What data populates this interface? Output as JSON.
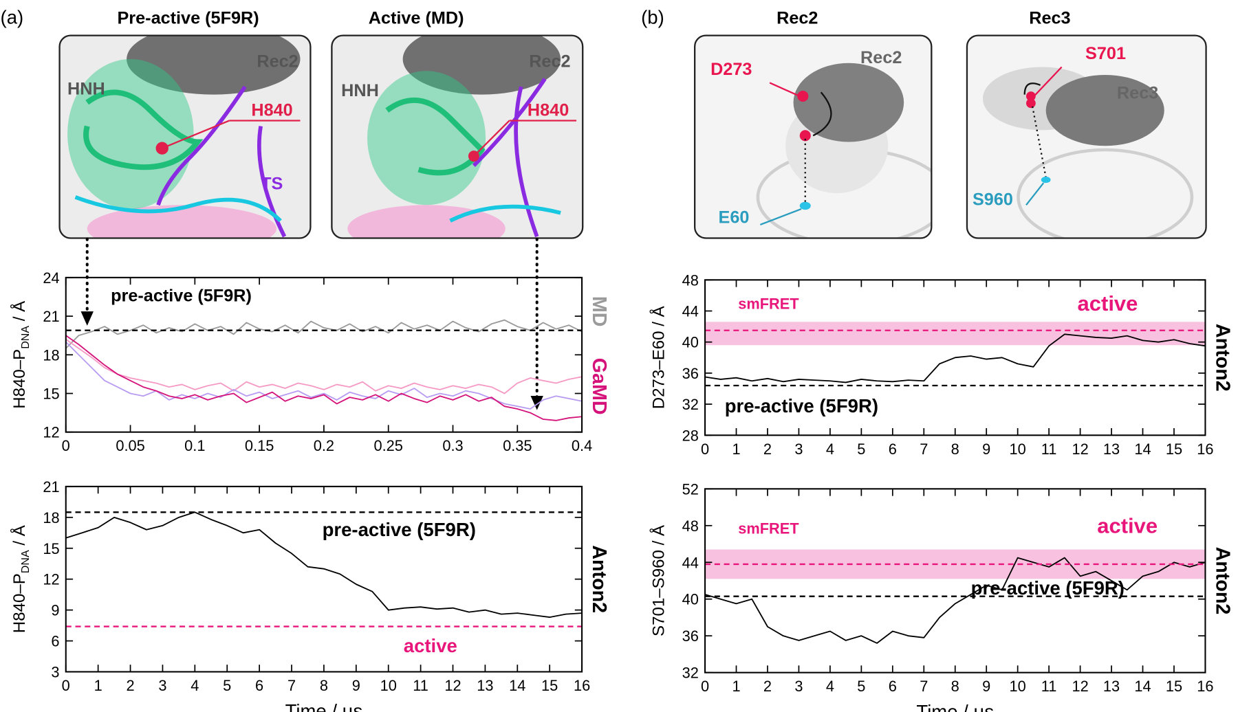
{
  "panel_labels": [
    "(a)",
    "(b)"
  ],
  "structures": [
    {
      "title": "Pre-active (5F9R)",
      "labels": [
        "HNH",
        "Rec2",
        "H840",
        "TS"
      ]
    },
    {
      "title": "Active (MD)",
      "labels": [
        "HNH",
        "Rec2",
        "H840"
      ]
    },
    {
      "title": "Rec2",
      "labels": [
        "D273",
        "Rec2",
        "E60"
      ]
    },
    {
      "title": "Rec3",
      "labels": [
        "S701",
        "Rec3",
        "S960"
      ]
    }
  ],
  "chart_data": [
    {
      "type": "line",
      "ylabel": {
        "text": "H840–P",
        "sub": "DNA",
        "tail": " / Å"
      },
      "x": [
        0,
        0.01,
        0.02,
        0.03,
        0.04,
        0.05,
        0.06,
        0.07,
        0.08,
        0.09,
        0.1,
        0.11,
        0.12,
        0.13,
        0.14,
        0.15,
        0.16,
        0.17,
        0.18,
        0.19,
        0.2,
        0.21,
        0.22,
        0.23,
        0.24,
        0.25,
        0.26,
        0.27,
        0.28,
        0.29,
        0.3,
        0.31,
        0.32,
        0.33,
        0.34,
        0.35,
        0.36,
        0.37,
        0.38,
        0.39,
        0.4
      ],
      "xlim": [
        0,
        0.4
      ],
      "xticks": [
        0,
        0.05,
        0.1,
        0.15,
        0.2,
        0.25,
        0.3,
        0.35,
        0.4
      ],
      "ylim": [
        12,
        24
      ],
      "yticks": [
        12,
        15,
        18,
        21,
        24
      ],
      "series": [
        {
          "name": "MD",
          "color": "#9a9a9a",
          "values": [
            18.5,
            19.5,
            19.8,
            20.2,
            19.6,
            19.9,
            20.3,
            19.7,
            20.1,
            19.8,
            20.4,
            19.9,
            20.2,
            19.6,
            20.5,
            20.0,
            19.8,
            20.3,
            19.7,
            20.6,
            20.1,
            19.9,
            20.4,
            19.8,
            20.2,
            19.7,
            20.5,
            20.0,
            20.3,
            19.9,
            20.6,
            20.1,
            19.8,
            20.4,
            20.7,
            20.2,
            19.9,
            20.5,
            20.0,
            20.3,
            19.8
          ]
        },
        {
          "color": "#f59ac4",
          "values": [
            19.2,
            18.5,
            17.8,
            17.0,
            16.5,
            16.2,
            16.0,
            15.8,
            15.5,
            15.7,
            15.3,
            15.6,
            15.8,
            15.2,
            15.9,
            15.5,
            15.7,
            15.4,
            15.8,
            15.6,
            15.3,
            15.7,
            15.5,
            15.9,
            15.2,
            15.6,
            15.4,
            15.8,
            15.5,
            15.3,
            15.6,
            15.4,
            15.7,
            15.5,
            15.0,
            15.8,
            16.2,
            16.0,
            15.8,
            16.1,
            16.3
          ]
        },
        {
          "color": "#b89cf2",
          "values": [
            19.0,
            18.0,
            17.0,
            16.0,
            15.5,
            15.0,
            14.8,
            15.2,
            14.5,
            14.9,
            14.6,
            15.0,
            14.7,
            15.3,
            14.8,
            15.1,
            14.6,
            14.9,
            15.2,
            14.7,
            15.0,
            14.5,
            15.1,
            14.8,
            14.6,
            15.2,
            14.9,
            15.4,
            14.7,
            15.0,
            14.8,
            15.2,
            15.0,
            14.6,
            14.2,
            14.0,
            13.8,
            14.5,
            14.8,
            14.6,
            14.4
          ]
        },
        {
          "name": "GaMD",
          "color": "#d4127a",
          "values": [
            19.5,
            18.8,
            18.0,
            17.2,
            16.5,
            16.0,
            15.5,
            15.2,
            14.8,
            14.6,
            14.9,
            14.5,
            14.8,
            15.0,
            14.3,
            14.7,
            15.1,
            14.4,
            14.8,
            14.6,
            14.9,
            14.2,
            14.7,
            14.5,
            14.9,
            14.4,
            15.0,
            14.6,
            14.3,
            14.8,
            14.5,
            14.9,
            14.4,
            14.7,
            14.0,
            13.8,
            13.5,
            13.0,
            12.9,
            13.1,
            13.2
          ]
        }
      ],
      "reference_lines": [
        {
          "value": 19.9,
          "color": "#000000"
        }
      ],
      "annotations": [
        "pre-active (5F9R)"
      ]
    },
    {
      "type": "line",
      "ylabel": {
        "text": "H840–P",
        "sub": "DNA",
        "tail": " / Å"
      },
      "xlabel": "Time / µs",
      "x": [
        0,
        0.5,
        1,
        1.5,
        2,
        2.5,
        3,
        3.5,
        4,
        4.5,
        5,
        5.5,
        6,
        6.5,
        7,
        7.5,
        8,
        8.5,
        9,
        9.5,
        10,
        10.5,
        11,
        11.5,
        12,
        12.5,
        13,
        13.5,
        14,
        14.5,
        15,
        15.5,
        16
      ],
      "xlim": [
        0,
        16
      ],
      "xticks": [
        0,
        1,
        2,
        3,
        4,
        5,
        6,
        7,
        8,
        9,
        10,
        11,
        12,
        13,
        14,
        15,
        16
      ],
      "ylim": [
        3,
        21
      ],
      "yticks": [
        3,
        6,
        9,
        12,
        15,
        18,
        21
      ],
      "series": [
        {
          "name": "Anton2",
          "color": "#000000",
          "values": [
            16,
            16.5,
            17,
            18,
            17.5,
            16.8,
            17.2,
            18,
            18.5,
            17.8,
            17.2,
            16.5,
            16.8,
            15.5,
            14.5,
            13.2,
            13,
            12.5,
            11.5,
            10.8,
            9,
            9.2,
            9.3,
            9.1,
            9.2,
            8.8,
            9,
            8.6,
            8.7,
            8.5,
            8.3,
            8.6,
            8.7
          ]
        }
      ],
      "reference_lines": [
        {
          "value": 18.5,
          "color": "#000000"
        },
        {
          "value": 7.4,
          "color": "#e8157a"
        }
      ],
      "annotations": [
        "pre-active (5F9R)",
        "active"
      ]
    },
    {
      "type": "line",
      "ylabel": "D273–E60 / Å",
      "x": [
        0,
        0.5,
        1,
        1.5,
        2,
        2.5,
        3,
        3.5,
        4,
        4.5,
        5,
        5.5,
        6,
        6.5,
        7,
        7.5,
        8,
        8.5,
        9,
        9.5,
        10,
        10.5,
        11,
        11.5,
        12,
        12.5,
        13,
        13.5,
        14,
        14.5,
        15,
        15.5,
        16
      ],
      "xlim": [
        0,
        16
      ],
      "xticks": [
        0,
        1,
        2,
        3,
        4,
        5,
        6,
        7,
        8,
        9,
        10,
        11,
        12,
        13,
        14,
        15,
        16
      ],
      "ylim": [
        28,
        48
      ],
      "yticks": [
        28,
        32,
        36,
        40,
        44,
        48
      ],
      "band": {
        "range": [
          39.6,
          42.6
        ],
        "color": "#f7b6d9"
      },
      "series": [
        {
          "name": "Anton2",
          "color": "#000000",
          "values": [
            35.5,
            35.2,
            35.4,
            35.0,
            35.3,
            34.9,
            35.2,
            35.1,
            35.0,
            34.8,
            35.2,
            35.0,
            34.9,
            35.1,
            35.0,
            37.2,
            38.0,
            38.2,
            37.8,
            38.0,
            37.2,
            36.8,
            39.5,
            41.0,
            40.8,
            40.6,
            40.5,
            40.8,
            40.2,
            40.0,
            40.3,
            39.8,
            39.5
          ]
        }
      ],
      "reference_lines": [
        {
          "value": 41.5,
          "color": "#e8157a"
        },
        {
          "value": 34.4,
          "color": "#000000"
        }
      ],
      "annotations": [
        "smFRET",
        "active",
        "pre-active (5F9R)"
      ]
    },
    {
      "type": "line",
      "ylabel": "S701–S960 / Å",
      "xlabel": "Time / µs",
      "x": [
        0,
        0.5,
        1,
        1.5,
        2,
        2.5,
        3,
        3.5,
        4,
        4.5,
        5,
        5.5,
        6,
        6.5,
        7,
        7.5,
        8,
        8.5,
        9,
        9.5,
        10,
        10.5,
        11,
        11.5,
        12,
        12.5,
        13,
        13.5,
        14,
        14.5,
        15,
        15.5,
        16
      ],
      "xlim": [
        0,
        16
      ],
      "xticks": [
        0,
        1,
        2,
        3,
        4,
        5,
        6,
        7,
        8,
        9,
        10,
        11,
        12,
        13,
        14,
        15,
        16
      ],
      "ylim": [
        32,
        52
      ],
      "yticks": [
        32,
        36,
        40,
        44,
        48,
        52
      ],
      "band": {
        "range": [
          42.2,
          45.4
        ],
        "color": "#f7b6d9"
      },
      "series": [
        {
          "name": "Anton2",
          "color": "#000000",
          "values": [
            40.5,
            40,
            39.5,
            40,
            37,
            36,
            35.5,
            36,
            36.5,
            35.5,
            36,
            35.2,
            36.5,
            36,
            35.8,
            38,
            39.5,
            40.5,
            41.5,
            41,
            44.5,
            44,
            43.5,
            44.5,
            42.5,
            43,
            42,
            41,
            42.5,
            43,
            44,
            43.5,
            44
          ]
        }
      ],
      "reference_lines": [
        {
          "value": 43.8,
          "color": "#e8157a"
        },
        {
          "value": 40.3,
          "color": "#000000"
        }
      ],
      "annotations": [
        "smFRET",
        "active",
        "pre-active (5F9R)"
      ]
    }
  ]
}
